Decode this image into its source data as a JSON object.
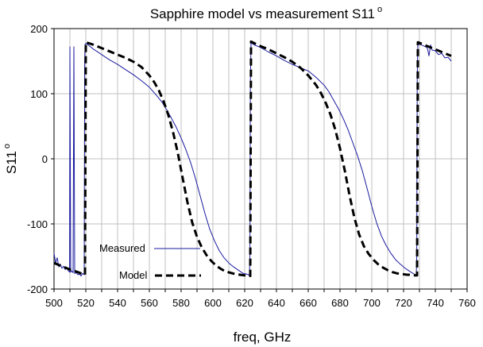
{
  "chart_data": {
    "type": "line",
    "title": "Sapphire model vs measurement S11",
    "title_superscript": "o",
    "xlabel": "freq, GHz",
    "ylabel": "S11",
    "ylabel_superscript": "o",
    "xlim": [
      500,
      760
    ],
    "ylim": [
      -200,
      200
    ],
    "xticks": [
      500,
      510,
      520,
      530,
      540,
      550,
      560,
      570,
      580,
      590,
      600,
      610,
      620,
      630,
      640,
      650,
      660,
      670,
      680,
      690,
      700,
      710,
      720,
      730,
      740,
      750,
      760
    ],
    "yticks": [
      -200,
      -100,
      0,
      100,
      200
    ],
    "grid": true,
    "legend_position": "bottom-left",
    "colors": {
      "measured": "#1a1aa0",
      "model": "#000000",
      "grid": "#c0c0c0"
    },
    "series": [
      {
        "name": "Measured",
        "style": "solid",
        "x": [
          500,
          501,
          502,
          503,
          504,
          505,
          506,
          507,
          508,
          509,
          509.8,
          510,
          510.5,
          511,
          512,
          512.5,
          513,
          514,
          515,
          516,
          517,
          518,
          519,
          519.3,
          519.6,
          520,
          521,
          523,
          525,
          527,
          530,
          535,
          540,
          545,
          550,
          555,
          560,
          565,
          568,
          571,
          574,
          577,
          580,
          583,
          586,
          589,
          592,
          595,
          598,
          601,
          604,
          607,
          610,
          613,
          616,
          619,
          621,
          622.5,
          623,
          623.3,
          623.6,
          624,
          626,
          630,
          635,
          640,
          645,
          650,
          655,
          660,
          665,
          670,
          673,
          676,
          679,
          682,
          685,
          688,
          691,
          694,
          697,
          700,
          703,
          706,
          709,
          712,
          715,
          718,
          721,
          724,
          726,
          727.5,
          728,
          728.3,
          728.6,
          729,
          730,
          732,
          734,
          735,
          736,
          737,
          738,
          740,
          742,
          744,
          746,
          748,
          750
        ],
        "y": [
          -145,
          -160,
          -152,
          -166,
          -162,
          -168,
          -165,
          -170,
          -168,
          -172,
          -174,
          172,
          -174,
          -172,
          -175,
          172,
          -176,
          -175,
          -178,
          -177,
          -180,
          -176,
          -178,
          150,
          176,
          177,
          176,
          172,
          168,
          165,
          160,
          152,
          145,
          137,
          129,
          120,
          110,
          96,
          87,
          75,
          62,
          48,
          32,
          14,
          -6,
          -30,
          -57,
          -84,
          -108,
          -126,
          -141,
          -152,
          -160,
          -166,
          -171,
          -176,
          -177,
          -178,
          -180,
          -150,
          120,
          178,
          175,
          171,
          164,
          158,
          151,
          145,
          140,
          135,
          125,
          113,
          103,
          90,
          77,
          62,
          45,
          25,
          5,
          -18,
          -45,
          -73,
          -98,
          -118,
          -133,
          -145,
          -155,
          -162,
          -168,
          -173,
          -176,
          -178,
          -180,
          -150,
          120,
          178,
          176,
          174,
          172,
          170,
          158,
          175,
          167,
          166,
          160,
          162,
          155,
          156,
          150
        ]
      },
      {
        "name": "Model",
        "style": "dashed",
        "x": [
          500,
          505,
          510,
          515,
          518,
          519.5,
          520,
          525,
          530,
          535,
          540,
          545,
          550,
          555,
          560,
          563,
          566,
          569,
          572,
          575,
          578,
          581,
          584,
          587,
          590,
          593,
          596,
          599,
          602,
          605,
          608,
          611,
          614,
          617,
          620,
          622,
          623.5,
          624,
          630,
          635,
          640,
          645,
          650,
          655,
          660,
          665,
          668,
          671,
          674,
          677,
          680,
          683,
          686,
          689,
          692,
          695,
          698,
          701,
          704,
          707,
          710,
          713,
          716,
          719,
          722,
          725,
          727,
          728.5,
          729,
          735,
          740,
          745,
          750
        ],
        "y": [
          -160,
          -165,
          -170,
          -174,
          -177,
          -178,
          179,
          175,
          170,
          165,
          160,
          155,
          149,
          141,
          128,
          118,
          105,
          88,
          67,
          40,
          8,
          -30,
          -67,
          -98,
          -120,
          -136,
          -148,
          -157,
          -164,
          -169,
          -173,
          -175,
          -177,
          -178,
          -179,
          -179,
          -180,
          180,
          173,
          168,
          162,
          156,
          149,
          140,
          128,
          113,
          101,
          86,
          68,
          45,
          16,
          -18,
          -56,
          -90,
          -116,
          -134,
          -146,
          -155,
          -162,
          -167,
          -171,
          -174,
          -176,
          -177,
          -178,
          -178,
          -179,
          -179,
          179,
          173,
          168,
          163,
          158
        ]
      }
    ]
  }
}
